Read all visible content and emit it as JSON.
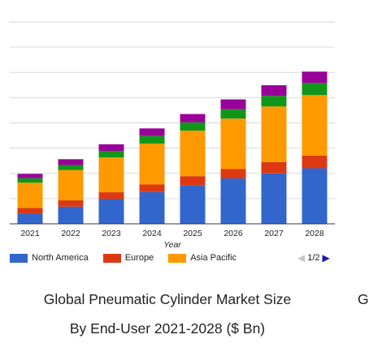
{
  "chart_data": {
    "type": "bar",
    "stacked": true,
    "xlabel": "Year",
    "ylabel": "",
    "ylim": [
      0,
      8
    ],
    "grid": true,
    "legend_position": "bottom-left",
    "categories": [
      "2021",
      "2022",
      "2023",
      "2024",
      "2025",
      "2026",
      "2027",
      "2028"
    ],
    "series": [
      {
        "name": "North America",
        "color": "#3366cc",
        "values": [
          0.4,
          0.68,
          0.98,
          1.26,
          1.52,
          1.8,
          2.0,
          2.2
        ]
      },
      {
        "name": "Europe",
        "color": "#dc3912",
        "values": [
          0.23,
          0.25,
          0.27,
          0.3,
          0.37,
          0.37,
          0.45,
          0.5
        ]
      },
      {
        "name": "Asia Pacific",
        "color": "#ff9900",
        "values": [
          1.0,
          1.2,
          1.38,
          1.62,
          1.8,
          2.0,
          2.2,
          2.4
        ]
      },
      {
        "name": "",
        "color": "#109618",
        "values": [
          0.18,
          0.2,
          0.26,
          0.3,
          0.33,
          0.37,
          0.42,
          0.48
        ]
      },
      {
        "name": "",
        "color": "#990099",
        "values": [
          0.17,
          0.23,
          0.26,
          0.3,
          0.33,
          0.39,
          0.42,
          0.45
        ]
      }
    ]
  },
  "legend": {
    "items": [
      {
        "label": "North America",
        "color": "#3366cc"
      },
      {
        "label": "Europe",
        "color": "#dc3912"
      },
      {
        "label": "Asia Pacific",
        "color": "#ff9900"
      }
    ],
    "page_indicator": "1/2",
    "prev_icon": "◀",
    "next_icon": "▶"
  },
  "caption": {
    "line1": "Global Pneumatic Cylinder Market Size",
    "line2": "By End-User 2021-2028 ($ Bn)",
    "cut_next": "G"
  }
}
